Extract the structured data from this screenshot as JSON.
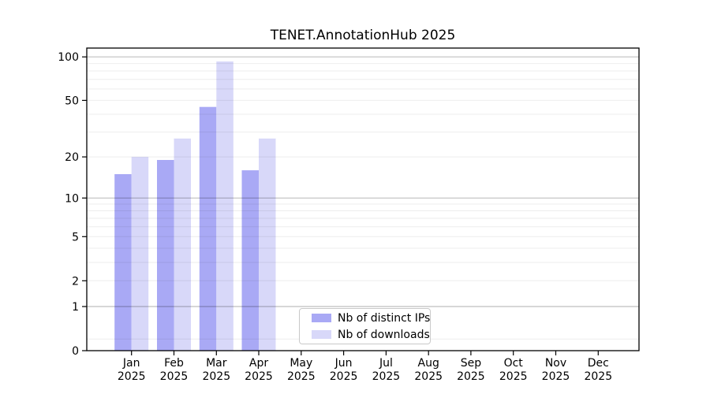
{
  "figure": {
    "background_color": "#ffffff"
  },
  "chart_data": {
    "type": "bar",
    "title": "TENET.AnnotationHub 2025",
    "categories": [
      "Jan",
      "Feb",
      "Mar",
      "Apr",
      "May",
      "Jun",
      "Jul",
      "Aug",
      "Sep",
      "Oct",
      "Nov",
      "Dec"
    ],
    "year_label": "2025",
    "series": [
      {
        "name": "Nb of distinct IPs",
        "color": "#a9a9f5",
        "values": [
          15,
          19,
          45,
          16,
          null,
          null,
          null,
          null,
          null,
          null,
          null,
          null
        ]
      },
      {
        "name": "Nb of downloads",
        "color": "#d8d8f9",
        "values": [
          20,
          27,
          93,
          27,
          null,
          null,
          null,
          null,
          null,
          null,
          null,
          null
        ]
      }
    ],
    "xlabel": "",
    "ylabel": "",
    "yscale": "log10(1+v)",
    "ylim": [
      0,
      115
    ],
    "yticks": [
      0,
      1,
      2,
      5,
      10,
      20,
      50,
      100
    ],
    "grid": {
      "on": true,
      "major_values": [
        1,
        10,
        100
      ],
      "minor_values": [
        0.2,
        2,
        3,
        4,
        5,
        6,
        7,
        8,
        9,
        20,
        30,
        40,
        50,
        60,
        70,
        80,
        90
      ],
      "major_color": "rgba(0,0,0,0.25)",
      "minor_color": "rgba(0,0,0,0.07)"
    },
    "legend_position": "bottom-center",
    "axis_color": "#000000"
  }
}
